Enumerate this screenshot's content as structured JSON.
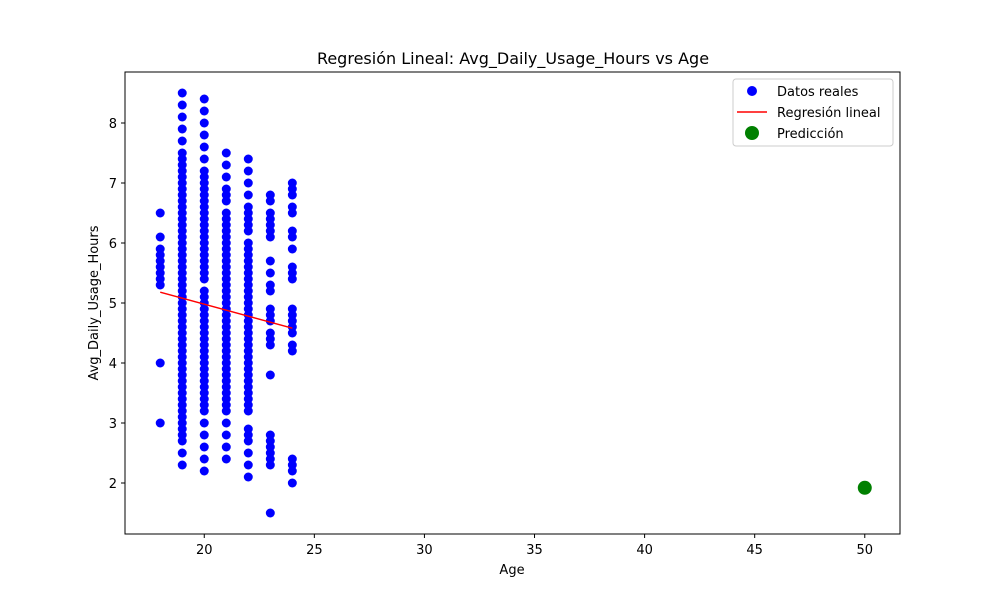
{
  "chart_data": {
    "type": "scatter",
    "title": "Regresión Lineal: Avg_Daily_Usage_Hours vs Age",
    "xlabel": "Age",
    "ylabel": "Avg_Daily_Usage_Hours",
    "xlim": [
      16.4,
      51.6
    ],
    "ylim": [
      1.15,
      8.85
    ],
    "xticks": [
      20,
      25,
      30,
      35,
      40,
      45,
      50
    ],
    "yticks": [
      2,
      3,
      4,
      5,
      6,
      7,
      8
    ],
    "grid": false,
    "legend_position": "upper right",
    "legend": [
      "Datos reales",
      "Regresión lineal",
      "Predicción"
    ],
    "series": [
      {
        "name": "Datos reales",
        "kind": "scatter",
        "color": "#0000ff",
        "columns": [
          {
            "x": 18,
            "y": [
              3.0,
              4.0,
              5.3,
              5.4,
              5.5,
              5.6,
              5.7,
              5.8,
              5.9,
              6.1,
              6.5
            ]
          },
          {
            "x": 19,
            "y": [
              2.3,
              2.5,
              2.7,
              2.8,
              2.9,
              3.0,
              3.1,
              3.2,
              3.3,
              3.4,
              3.5,
              3.6,
              3.7,
              3.8,
              3.9,
              4.0,
              4.1,
              4.2,
              4.3,
              4.4,
              4.5,
              4.6,
              4.7,
              4.8,
              4.9,
              5.0,
              5.1,
              5.2,
              5.3,
              5.4,
              5.5,
              5.6,
              5.7,
              5.8,
              5.9,
              6.0,
              6.1,
              6.2,
              6.3,
              6.4,
              6.5,
              6.6,
              6.7,
              6.8,
              6.9,
              7.0,
              7.1,
              7.2,
              7.3,
              7.4,
              7.5,
              7.7,
              7.9,
              8.1,
              8.3,
              8.5
            ]
          },
          {
            "x": 20,
            "y": [
              2.2,
              2.4,
              2.6,
              2.8,
              3.0,
              3.2,
              3.3,
              3.4,
              3.5,
              3.6,
              3.7,
              3.8,
              3.9,
              4.0,
              4.1,
              4.2,
              4.3,
              4.4,
              4.5,
              4.6,
              4.7,
              4.8,
              4.9,
              5.0,
              5.1,
              5.2,
              5.4,
              5.5,
              5.6,
              5.7,
              5.8,
              5.9,
              6.0,
              6.1,
              6.2,
              6.3,
              6.4,
              6.5,
              6.6,
              6.7,
              6.8,
              6.9,
              7.0,
              7.1,
              7.2,
              7.4,
              7.6,
              7.8,
              8.0,
              8.2,
              8.4
            ]
          },
          {
            "x": 21,
            "y": [
              2.4,
              2.6,
              2.8,
              3.0,
              3.2,
              3.3,
              3.4,
              3.5,
              3.6,
              3.7,
              3.8,
              3.9,
              4.0,
              4.1,
              4.2,
              4.3,
              4.4,
              4.5,
              4.6,
              4.7,
              4.8,
              4.9,
              5.0,
              5.1,
              5.2,
              5.3,
              5.4,
              5.5,
              5.6,
              5.7,
              5.8,
              5.9,
              6.0,
              6.1,
              6.2,
              6.3,
              6.4,
              6.5,
              6.7,
              6.8,
              6.9,
              7.1,
              7.3,
              7.5
            ]
          },
          {
            "x": 22,
            "y": [
              2.1,
              2.3,
              2.5,
              2.7,
              2.8,
              2.9,
              3.2,
              3.3,
              3.4,
              3.5,
              3.6,
              3.7,
              3.8,
              3.9,
              4.0,
              4.1,
              4.2,
              4.3,
              4.4,
              4.5,
              4.6,
              4.7,
              4.8,
              4.9,
              5.0,
              5.1,
              5.2,
              5.3,
              5.4,
              5.5,
              5.6,
              5.7,
              5.8,
              5.9,
              6.0,
              6.2,
              6.3,
              6.4,
              6.5,
              6.6,
              6.8,
              7.0,
              7.2,
              7.4
            ]
          },
          {
            "x": 23,
            "y": [
              1.5,
              2.3,
              2.4,
              2.5,
              2.6,
              2.7,
              2.8,
              3.8,
              4.3,
              4.4,
              4.5,
              4.7,
              4.8,
              4.9,
              5.2,
              5.3,
              5.5,
              5.7,
              6.1,
              6.2,
              6.3,
              6.4,
              6.5,
              6.7,
              6.8
            ]
          },
          {
            "x": 24,
            "y": [
              2.0,
              2.2,
              2.3,
              2.4,
              4.2,
              4.3,
              4.5,
              4.6,
              4.7,
              4.8,
              4.9,
              5.4,
              5.5,
              5.6,
              5.9,
              6.1,
              6.2,
              6.5,
              6.6,
              6.8,
              6.9,
              7.0
            ]
          }
        ]
      },
      {
        "name": "Regresión lineal",
        "kind": "line",
        "color": "#ff0000",
        "x": [
          18,
          24
        ],
        "y": [
          5.18,
          4.58
        ]
      },
      {
        "name": "Predicción",
        "kind": "scatter",
        "color": "#008000",
        "x": [
          50
        ],
        "y": [
          1.92
        ]
      }
    ]
  }
}
